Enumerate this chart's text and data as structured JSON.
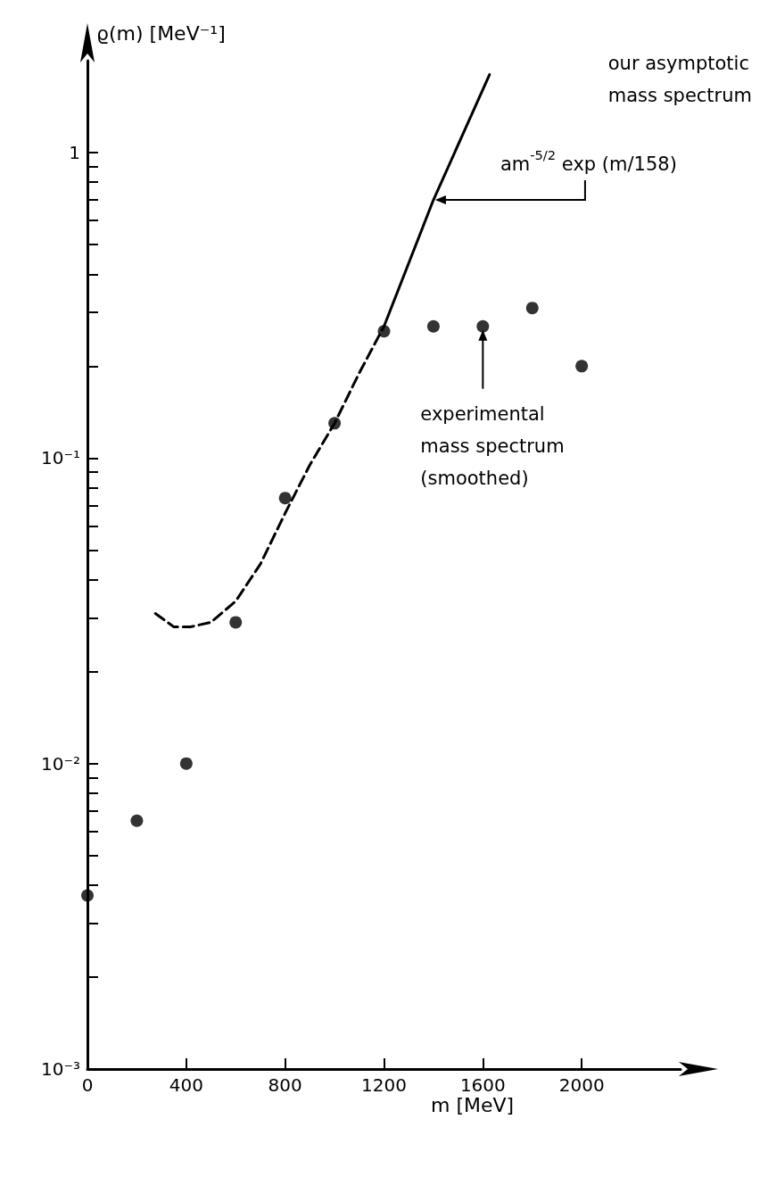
{
  "chart_data": {
    "type": "scatter",
    "xlabel": "m [MeV]",
    "ylabel": "ϱ(m) [MeV⁻¹]",
    "log": "y",
    "xlim": [
      0,
      2400
    ],
    "ylim": [
      0.001,
      2
    ],
    "xticks": [
      0,
      400,
      800,
      1200,
      1600,
      2000
    ],
    "yticks": [
      {
        "value": 0.001,
        "label": "10⁻³"
      },
      {
        "value": 0.002,
        "label": null
      },
      {
        "value": 0.003,
        "label": null
      },
      {
        "value": 0.004,
        "label": null
      },
      {
        "value": 0.005,
        "label": null
      },
      {
        "value": 0.006,
        "label": null
      },
      {
        "value": 0.007,
        "label": null
      },
      {
        "value": 0.008,
        "label": null
      },
      {
        "value": 0.009,
        "label": null
      },
      {
        "value": 0.01,
        "label": "10⁻²"
      },
      {
        "value": 0.02,
        "label": null
      },
      {
        "value": 0.03,
        "label": null
      },
      {
        "value": 0.04,
        "label": null
      },
      {
        "value": 0.05,
        "label": null
      },
      {
        "value": 0.06,
        "label": null
      },
      {
        "value": 0.07,
        "label": null
      },
      {
        "value": 0.08,
        "label": null
      },
      {
        "value": 0.09,
        "label": null
      },
      {
        "value": 0.1,
        "label": "10⁻¹"
      },
      {
        "value": 0.2,
        "label": null
      },
      {
        "value": 0.3,
        "label": null
      },
      {
        "value": 0.4,
        "label": null
      },
      {
        "value": 0.5,
        "label": null
      },
      {
        "value": 0.6,
        "label": null
      },
      {
        "value": 0.7,
        "label": null
      },
      {
        "value": 0.8,
        "label": null
      },
      {
        "value": 0.9,
        "label": null
      },
      1
    ],
    "grid": false,
    "marker": "circle",
    "series": [
      {
        "color": "#000000",
        "x": [
          0,
          200,
          400,
          600,
          800,
          1000,
          1200,
          1400,
          1600,
          1800,
          2000
        ],
        "values": [
          0.0037,
          0.0065,
          0.01,
          0.029,
          0.074,
          0.13,
          0.26,
          0.27,
          0.27,
          0.31,
          0.2
        ]
      },
      {
        "type": "line",
        "marker": "none",
        "line_style": "dashed",
        "color": "#000000",
        "x": [
          275,
          350,
          415,
          500,
          600,
          700,
          800,
          900,
          1000,
          1100,
          1200
        ],
        "values": [
          0.031,
          0.028,
          0.028,
          0.029,
          0.034,
          0.045,
          0.066,
          0.095,
          0.13,
          0.19,
          0.27
        ]
      },
      {
        "type": "line",
        "marker": "none",
        "line_style": "solid",
        "color": "#000000",
        "x": [
          1200,
          1400,
          1627
        ],
        "values": [
          0.27,
          0.7,
          1.8
        ]
      }
    ],
    "annotations": [
      "our asymptotic\nmass spectrum",
      {
        "text": "am$^{-5/2}$ exp (m/158)",
        "x": 1400,
        "y": 0.7
      },
      {
        "text": "experimental\nmass spectrum\n(smoothed)",
        "x": 1600,
        "y": 0.27
      }
    ]
  }
}
